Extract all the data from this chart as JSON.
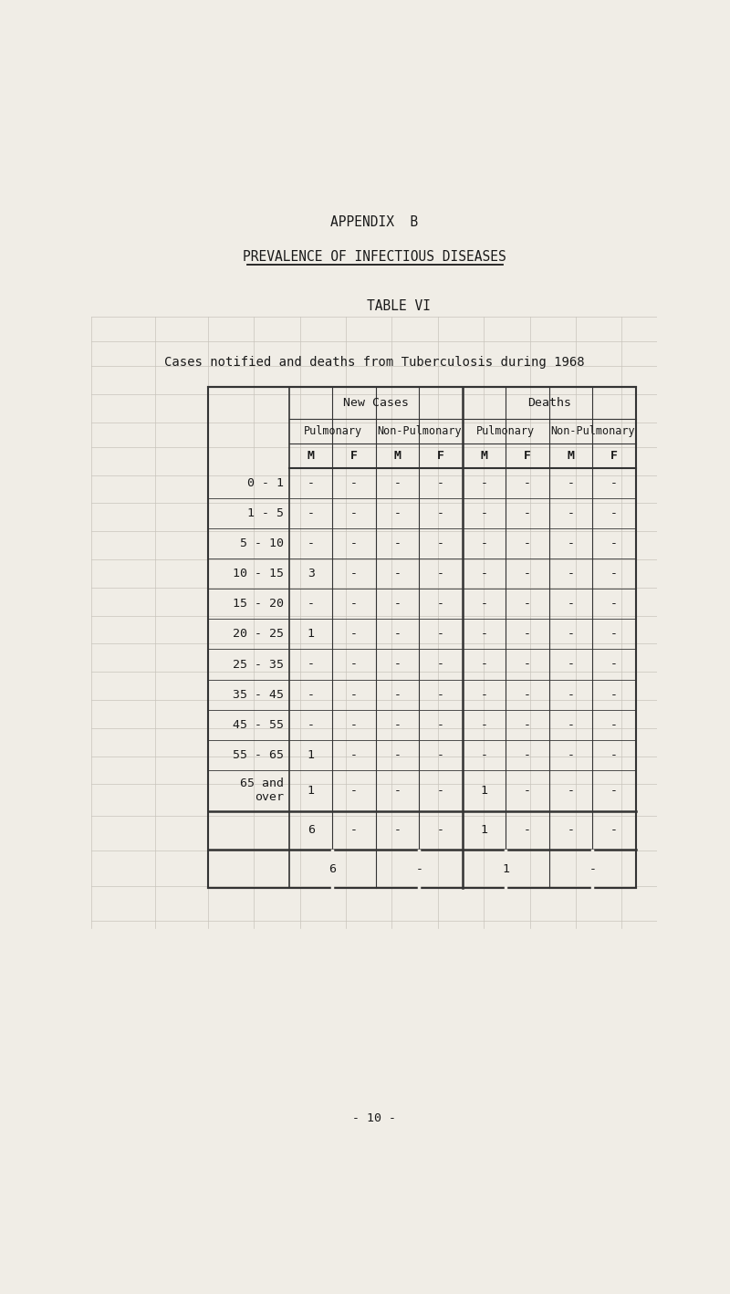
{
  "background_color": "#f0ede6",
  "page_bg": "#f0ede6",
  "page_title1": "APPENDIX  B",
  "page_title2": "PREVALENCE OF INFECTIOUS DISEASES",
  "table_title": "TABLE VI",
  "subtitle": "Cases notified and deaths from Tuberculosis during 1968",
  "footer": "- 10 -",
  "col_headers_level1": [
    "New Cases",
    "Deaths"
  ],
  "col_headers_level2": [
    "Pulmonary",
    "Non-Pulmonary",
    "Pulmonary",
    "Non-Pulmonary"
  ],
  "col_headers_level3": [
    "M",
    "F",
    "M",
    "F",
    "M",
    "F",
    "M",
    "F"
  ],
  "age_groups": [
    "0 - 1",
    "1 - 5",
    "5 - 10",
    "10 - 15",
    "15 - 20",
    "20 - 25",
    "25 - 35",
    "35 - 45",
    "45 - 55",
    "55 - 65",
    "65 and\nover"
  ],
  "data": [
    [
      "-",
      "-",
      "-",
      "-",
      "-",
      "-",
      "-",
      "-"
    ],
    [
      "-",
      "-",
      "-",
      "-",
      "-",
      "-",
      "-",
      "-"
    ],
    [
      "-",
      "-",
      "-",
      "-",
      "-",
      "-",
      "-",
      "-"
    ],
    [
      "3",
      "-",
      "-",
      "-",
      "-",
      "-",
      "-",
      "-"
    ],
    [
      "-",
      "-",
      "-",
      "-",
      "-",
      "-",
      "-",
      "-"
    ],
    [
      "1",
      "-",
      "-",
      "-",
      "-",
      "-",
      "-",
      "-"
    ],
    [
      "-",
      "-",
      "-",
      "-",
      "-",
      "-",
      "-",
      "-"
    ],
    [
      "-",
      "-",
      "-",
      "-",
      "-",
      "-",
      "-",
      "-"
    ],
    [
      "-",
      "-",
      "-",
      "-",
      "-",
      "-",
      "-",
      "-"
    ],
    [
      "1",
      "-",
      "-",
      "-",
      "-",
      "-",
      "-",
      "-"
    ],
    [
      "1",
      "-",
      "-",
      "-",
      "1",
      "-",
      "-",
      "-"
    ]
  ],
  "subtotal_row": [
    "6",
    "-",
    "-",
    "-",
    "1",
    "-",
    "-",
    "-"
  ],
  "total_row_values": [
    "6",
    "-",
    "1",
    "-"
  ],
  "line_color": "#333333",
  "text_color": "#1a1a1a",
  "ghost_color": "#c8c4bc",
  "title_fontsize": 10.5,
  "table_fontsize": 9.5
}
